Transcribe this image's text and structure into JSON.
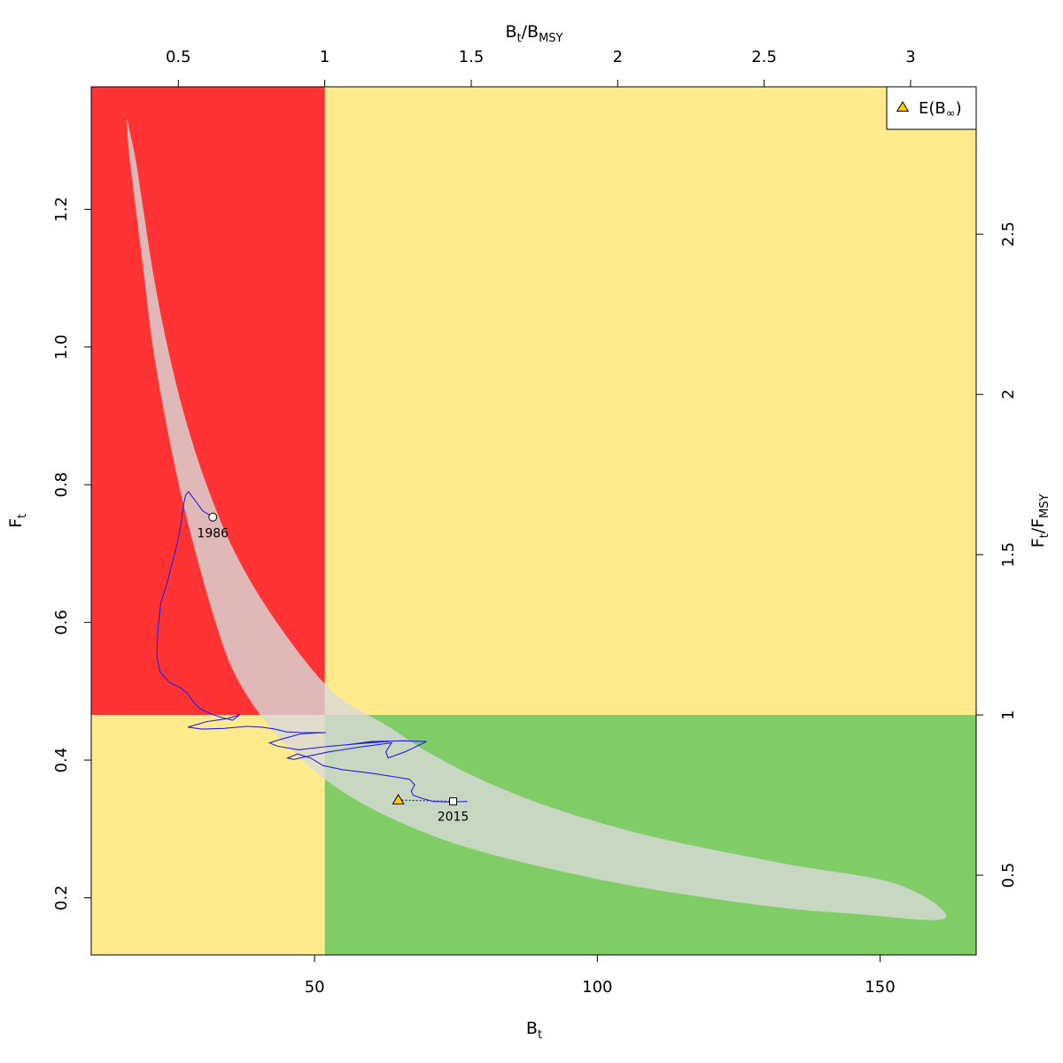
{
  "chart_data": {
    "type": "scatter",
    "x_primary": {
      "label_main": "B",
      "label_sub": "t",
      "lim": [
        10.5,
        167
      ],
      "ticks": [
        50,
        100,
        150
      ]
    },
    "y_primary": {
      "label_main": "F",
      "label_sub": "t",
      "lim": [
        0.117,
        1.378
      ],
      "ticks": [
        0.2,
        0.4,
        0.6,
        0.8,
        1.0,
        1.2
      ],
      "tick_labels": [
        "0.2",
        "0.4",
        "0.6",
        "0.8",
        "1.0",
        "1.2"
      ]
    },
    "x_secondary": {
      "label_num_main": "B",
      "label_num_sub": "t",
      "label_den_main": "B",
      "label_den_sub": "MSY",
      "bmsy": 51.8,
      "ticks": [
        0.5,
        1,
        1.5,
        2,
        2.5,
        3
      ],
      "tick_labels": [
        "0.5",
        "1",
        "1.5",
        "2",
        "2.5",
        "3"
      ]
    },
    "y_secondary": {
      "label_num_main": "F",
      "label_num_sub": "t",
      "label_den_main": "F",
      "label_den_sub": "MSY",
      "fmsy": 0.4656,
      "ticks": [
        0.5,
        1,
        1.5,
        2,
        2.5
      ],
      "tick_labels": [
        "0.5",
        "1",
        "1.5",
        "2",
        "2.5"
      ]
    },
    "zones": {
      "red": "#ff3333",
      "yellow": "#ffeb8c",
      "green": "#80cc66"
    },
    "confidence_region_color": "#d9d9d9",
    "confidence_region": [
      [
        16.8,
        1.331
      ],
      [
        17.4,
        1.31
      ],
      [
        18.4,
        1.27
      ],
      [
        19.7,
        1.2
      ],
      [
        21.6,
        1.1
      ],
      [
        24.0,
        1.0
      ],
      [
        27.0,
        0.9
      ],
      [
        30.9,
        0.8
      ],
      [
        36.0,
        0.7
      ],
      [
        43.3,
        0.6
      ],
      [
        53.1,
        0.5
      ],
      [
        62.8,
        0.45
      ],
      [
        70.4,
        0.41
      ],
      [
        79.9,
        0.37
      ],
      [
        92.3,
        0.33
      ],
      [
        109.2,
        0.29
      ],
      [
        132.8,
        0.25
      ],
      [
        153.0,
        0.22
      ],
      [
        161.5,
        0.17
      ],
      [
        145.0,
        0.177
      ],
      [
        130.0,
        0.188
      ],
      [
        110.0,
        0.212
      ],
      [
        95.0,
        0.236
      ],
      [
        80.0,
        0.266
      ],
      [
        70.0,
        0.293
      ],
      [
        60.0,
        0.33
      ],
      [
        52.0,
        0.371
      ],
      [
        45.2,
        0.42
      ],
      [
        40.0,
        0.47
      ],
      [
        35.6,
        0.53
      ],
      [
        32.5,
        0.6
      ],
      [
        29.0,
        0.7
      ],
      [
        26.0,
        0.8
      ],
      [
        23.5,
        0.9
      ],
      [
        21.4,
        1.0
      ],
      [
        19.9,
        1.1
      ],
      [
        18.4,
        1.2
      ],
      [
        17.2,
        1.28
      ]
    ],
    "trajectory_color": "#2222dd",
    "trajectory": [
      [
        32.0,
        0.753
      ],
      [
        30.2,
        0.762
      ],
      [
        28.8,
        0.778
      ],
      [
        27.7,
        0.79
      ],
      [
        27.2,
        0.785
      ],
      [
        26.9,
        0.774
      ],
      [
        26.4,
        0.745
      ],
      [
        25.9,
        0.722
      ],
      [
        25.2,
        0.698
      ],
      [
        24.1,
        0.663
      ],
      [
        22.8,
        0.628
      ],
      [
        22.3,
        0.59
      ],
      [
        22.1,
        0.55
      ],
      [
        22.7,
        0.528
      ],
      [
        24.3,
        0.513
      ],
      [
        26.3,
        0.505
      ],
      [
        27.6,
        0.496
      ],
      [
        28.6,
        0.484
      ],
      [
        29.7,
        0.475
      ],
      [
        31.4,
        0.468
      ],
      [
        33.5,
        0.462
      ],
      [
        35.5,
        0.458
      ],
      [
        36.8,
        0.466
      ],
      [
        34.5,
        0.46
      ],
      [
        31.0,
        0.456
      ],
      [
        27.6,
        0.448
      ],
      [
        30.0,
        0.445
      ],
      [
        34.0,
        0.446
      ],
      [
        38.0,
        0.449
      ],
      [
        40.6,
        0.448
      ],
      [
        43.0,
        0.445
      ],
      [
        45.0,
        0.441
      ],
      [
        48.0,
        0.44
      ],
      [
        52.0,
        0.44
      ],
      [
        47.5,
        0.438
      ],
      [
        44.0,
        0.43
      ],
      [
        42.0,
        0.425
      ],
      [
        43.5,
        0.42
      ],
      [
        47.2,
        0.415
      ],
      [
        52.5,
        0.42
      ],
      [
        58.0,
        0.424
      ],
      [
        63.2,
        0.427
      ],
      [
        59.0,
        0.425
      ],
      [
        55.5,
        0.422
      ],
      [
        60.0,
        0.427
      ],
      [
        65.7,
        0.428
      ],
      [
        69.8,
        0.427
      ],
      [
        66.0,
        0.412
      ],
      [
        63.0,
        0.403
      ],
      [
        62.6,
        0.412
      ],
      [
        63.6,
        0.425
      ],
      [
        58.0,
        0.419
      ],
      [
        52.6,
        0.412
      ],
      [
        49.0,
        0.406
      ],
      [
        46.3,
        0.401
      ],
      [
        45.2,
        0.403
      ],
      [
        47.0,
        0.409
      ],
      [
        49.3,
        0.403
      ],
      [
        51.5,
        0.392
      ],
      [
        55.0,
        0.386
      ],
      [
        60.0,
        0.381
      ],
      [
        64.7,
        0.375
      ],
      [
        66.8,
        0.372
      ],
      [
        67.7,
        0.364
      ],
      [
        67.1,
        0.355
      ],
      [
        67.4,
        0.349
      ],
      [
        69.2,
        0.344
      ],
      [
        71.0,
        0.34
      ],
      [
        74.0,
        0.339
      ],
      [
        77.0,
        0.34
      ]
    ],
    "forecast_line": [
      [
        64.8,
        0.342
      ],
      [
        74.5,
        0.34
      ]
    ],
    "start_year": "1986",
    "end_year": "2015",
    "start_point": [
      32.0,
      0.753
    ],
    "end_point": [
      74.5,
      0.34
    ],
    "expected_point": [
      64.8,
      0.342
    ],
    "expected_color": "#ffcc00",
    "legend": {
      "entry_main": "E(B",
      "entry_sub": "∞",
      "entry_tail": ")",
      "position": "top-right"
    }
  }
}
